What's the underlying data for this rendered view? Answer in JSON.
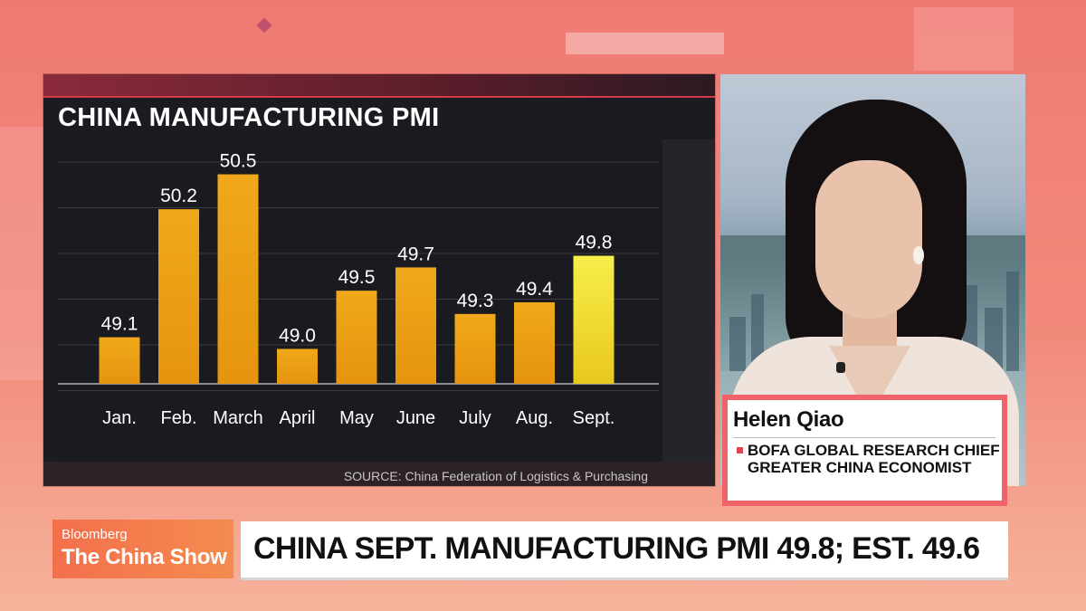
{
  "chart_data": {
    "type": "bar",
    "title": "CHINA MANUFACTURING PMI",
    "categories": [
      "Jan.",
      "Feb.",
      "March",
      "April",
      "May",
      "June",
      "July",
      "Aug.",
      "Sept."
    ],
    "values": [
      49.1,
      50.2,
      50.5,
      49.0,
      49.5,
      49.7,
      49.3,
      49.4,
      49.8
    ],
    "value_labels": [
      "49.1",
      "50.2",
      "50.5",
      "49.0",
      "49.5",
      "49.7",
      "49.3",
      "49.4",
      "49.8"
    ],
    "highlight_index": 8,
    "ylim": [
      48.7,
      50.8
    ],
    "grid": true,
    "legend": "none",
    "colors": {
      "bar": "#e5940f",
      "bar_top": "#f0a81a",
      "highlight": "#f2e13a",
      "grid": "#3a3b42"
    },
    "source": "SOURCE: China Federation of Logistics & Purchasing"
  },
  "guest": {
    "name": "Helen Qiao",
    "title": "BofA Global Research Chief Greater China Economist"
  },
  "show": {
    "brand": "Bloomberg",
    "name": "The China Show"
  },
  "headline": "CHINA SEPT. MANUFACTURING PMI 49.8; EST. 49.6"
}
